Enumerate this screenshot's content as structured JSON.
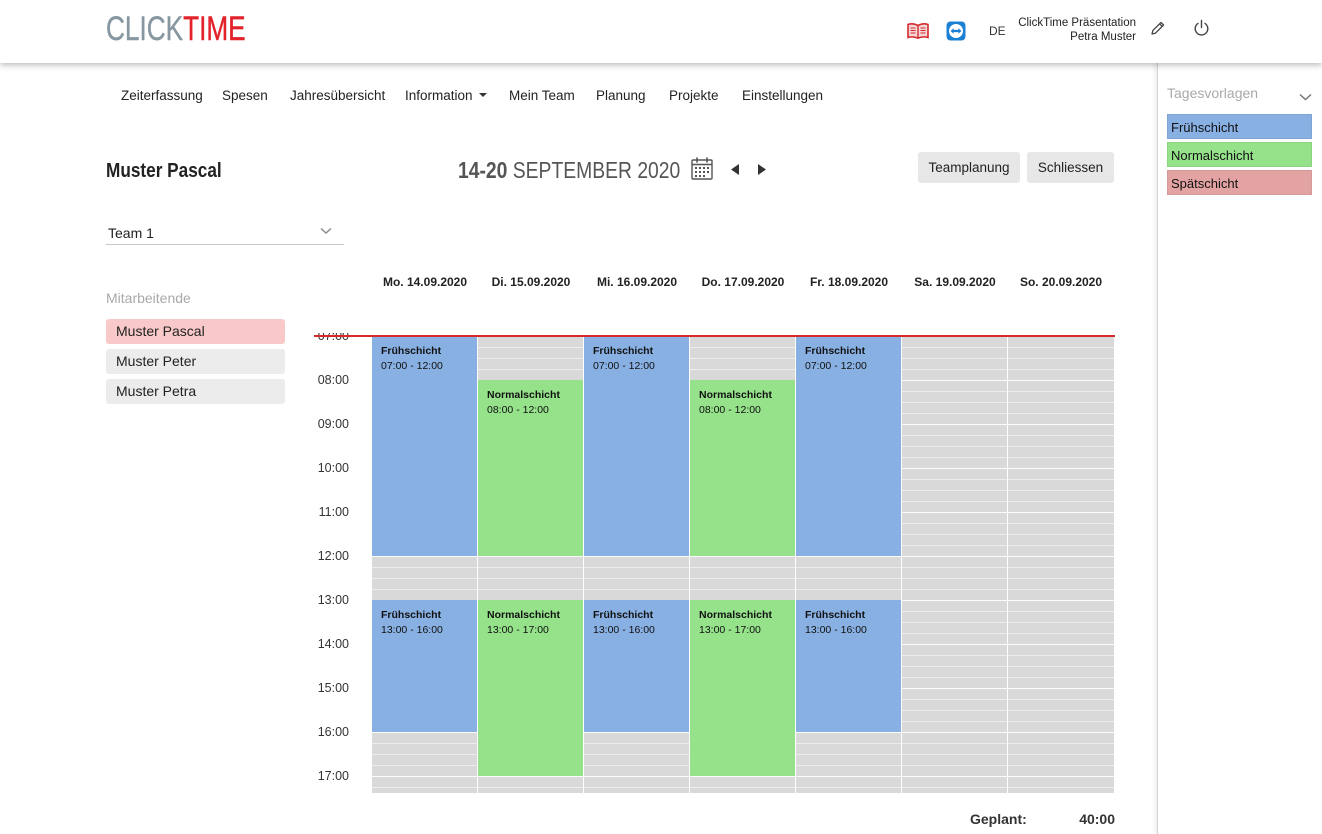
{
  "header": {
    "logo_part1": "CLICK",
    "logo_part2": "TIME",
    "language": "DE",
    "company": "ClickTime Präsentation",
    "user_name": "Petra Muster",
    "icons": {
      "manual": "book-icon",
      "remote_support": "teamviewer-icon",
      "edit_profile": "pencil-icon",
      "logout": "power-icon"
    }
  },
  "nav": {
    "items": [
      {
        "label": "Zeiterfassung"
      },
      {
        "label": "Spesen"
      },
      {
        "label": "Jahresübersicht"
      },
      {
        "label": "Information",
        "dropdown": true
      },
      {
        "label": "Mein Team"
      },
      {
        "label": "Planung"
      },
      {
        "label": "Projekte"
      },
      {
        "label": "Einstellungen"
      }
    ]
  },
  "page": {
    "employee_title": "Muster Pascal",
    "week_days": "14-20",
    "week_month_year": "SEPTEMBER 2020",
    "icons": {
      "date_picker": "calendar-icon",
      "previous_week": "arrow-left-icon",
      "next_week": "arrow-right-icon"
    }
  },
  "toolbar": {
    "teamplanung_label": "Teamplanung",
    "schliessen_label": "Schliessen"
  },
  "team_select": {
    "value": "Team 1"
  },
  "employees": {
    "heading": "Mitarbeitende",
    "items": [
      {
        "name": "Muster Pascal",
        "selected": true
      },
      {
        "name": "Muster Peter",
        "selected": false
      },
      {
        "name": "Muster Petra",
        "selected": false
      }
    ]
  },
  "calendar": {
    "hours": [
      "07:00",
      "08:00",
      "09:00",
      "10:00",
      "11:00",
      "12:00",
      "13:00",
      "14:00",
      "15:00",
      "16:00",
      "17:00"
    ],
    "time_separator": " - ",
    "days": [
      {
        "label": "Mo. 14.09.2020",
        "shifts": [
          {
            "template": "Frühschicht",
            "start": "07:00",
            "end": "12:00"
          },
          {
            "template": "Frühschicht",
            "start": "13:00",
            "end": "16:00"
          }
        ]
      },
      {
        "label": "Di. 15.09.2020",
        "shifts": [
          {
            "template": "Normalschicht",
            "start": "08:00",
            "end": "12:00"
          },
          {
            "template": "Normalschicht",
            "start": "13:00",
            "end": "17:00"
          }
        ]
      },
      {
        "label": "Mi. 16.09.2020",
        "shifts": [
          {
            "template": "Frühschicht",
            "start": "07:00",
            "end": "12:00"
          },
          {
            "template": "Frühschicht",
            "start": "13:00",
            "end": "16:00"
          }
        ]
      },
      {
        "label": "Do. 17.09.2020",
        "shifts": [
          {
            "template": "Normalschicht",
            "start": "08:00",
            "end": "12:00"
          },
          {
            "template": "Normalschicht",
            "start": "13:00",
            "end": "17:00"
          }
        ]
      },
      {
        "label": "Fr. 18.09.2020",
        "shifts": [
          {
            "template": "Frühschicht",
            "start": "07:00",
            "end": "12:00"
          },
          {
            "template": "Frühschicht",
            "start": "13:00",
            "end": "16:00"
          }
        ]
      },
      {
        "label": "Sa. 19.09.2020",
        "shifts": []
      },
      {
        "label": "So. 20.09.2020",
        "shifts": []
      }
    ]
  },
  "summary": {
    "planned_label": "Geplant:",
    "planned_value": "40:00"
  },
  "templates": {
    "heading": "Tagesvorlagen",
    "items": [
      {
        "label": "Frühschicht",
        "color": "#88b0e3"
      },
      {
        "label": "Normalschicht",
        "color": "#95e28b"
      },
      {
        "label": "Spätschicht",
        "color": "#e3a3a3"
      }
    ]
  },
  "colors": {
    "logo_gray": "#8797a1",
    "logo_red": "#e2232b",
    "selected_employee": "#f9c9c9",
    "employee_bg": "#ececec",
    "now_line": "#d62a2a",
    "grid_gray": "#d9d9d9",
    "button_bg": "#e7e7e7"
  }
}
